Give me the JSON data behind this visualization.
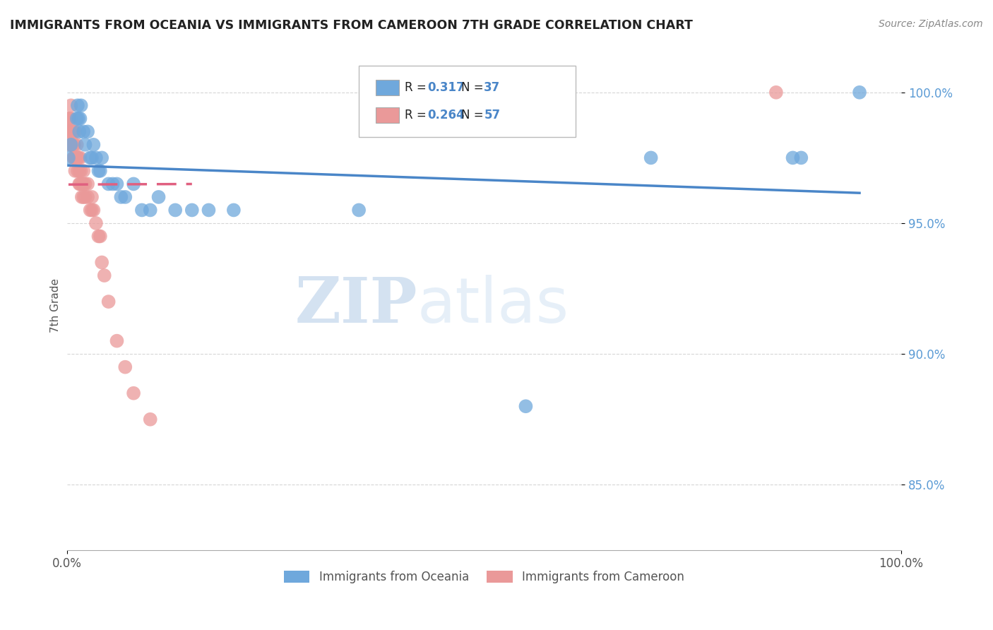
{
  "title": "IMMIGRANTS FROM OCEANIA VS IMMIGRANTS FROM CAMEROON 7TH GRADE CORRELATION CHART",
  "source": "Source: ZipAtlas.com",
  "ylabel": "7th Grade",
  "y_tick_vals": [
    0.85,
    0.9,
    0.95,
    1.0
  ],
  "legend_blue_r": "0.317",
  "legend_blue_n": "37",
  "legend_pink_r": "0.264",
  "legend_pink_n": "57",
  "blue_color": "#6fa8dc",
  "pink_color": "#ea9999",
  "blue_line_color": "#4a86c8",
  "pink_line_color": "#e06080",
  "watermark_zip": "ZIP",
  "watermark_atlas": "atlas",
  "blue_scatter_x": [
    0.002,
    0.005,
    0.012,
    0.013,
    0.014,
    0.015,
    0.016,
    0.017,
    0.02,
    0.022,
    0.025,
    0.028,
    0.03,
    0.032,
    0.035,
    0.038,
    0.04,
    0.042,
    0.05,
    0.055,
    0.06,
    0.065,
    0.07,
    0.08,
    0.09,
    0.1,
    0.11,
    0.13,
    0.15,
    0.17,
    0.2,
    0.35,
    0.55,
    0.7,
    0.87,
    0.88,
    0.95
  ],
  "blue_scatter_y": [
    0.975,
    0.98,
    0.99,
    0.995,
    0.99,
    0.985,
    0.99,
    0.995,
    0.985,
    0.98,
    0.985,
    0.975,
    0.975,
    0.98,
    0.975,
    0.97,
    0.97,
    0.975,
    0.965,
    0.965,
    0.965,
    0.96,
    0.96,
    0.965,
    0.955,
    0.955,
    0.96,
    0.955,
    0.955,
    0.955,
    0.955,
    0.955,
    0.88,
    0.975,
    0.975,
    0.975,
    1.0
  ],
  "pink_scatter_x": [
    0.002,
    0.002,
    0.003,
    0.003,
    0.003,
    0.004,
    0.005,
    0.005,
    0.005,
    0.005,
    0.006,
    0.006,
    0.007,
    0.007,
    0.008,
    0.008,
    0.008,
    0.009,
    0.009,
    0.01,
    0.01,
    0.01,
    0.011,
    0.012,
    0.012,
    0.013,
    0.013,
    0.014,
    0.015,
    0.015,
    0.016,
    0.016,
    0.017,
    0.018,
    0.018,
    0.02,
    0.02,
    0.02,
    0.022,
    0.022,
    0.025,
    0.025,
    0.028,
    0.03,
    0.03,
    0.032,
    0.035,
    0.038,
    0.04,
    0.042,
    0.045,
    0.05,
    0.06,
    0.07,
    0.08,
    0.1,
    0.85
  ],
  "pink_scatter_y": [
    0.99,
    0.985,
    0.99,
    0.985,
    0.98,
    0.985,
    0.995,
    0.99,
    0.985,
    0.98,
    0.985,
    0.98,
    0.985,
    0.98,
    0.985,
    0.98,
    0.975,
    0.98,
    0.975,
    0.985,
    0.975,
    0.97,
    0.975,
    0.98,
    0.975,
    0.975,
    0.97,
    0.975,
    0.97,
    0.965,
    0.975,
    0.965,
    0.97,
    0.965,
    0.96,
    0.97,
    0.965,
    0.96,
    0.965,
    0.96,
    0.965,
    0.96,
    0.955,
    0.96,
    0.955,
    0.955,
    0.95,
    0.945,
    0.945,
    0.935,
    0.93,
    0.92,
    0.905,
    0.895,
    0.885,
    0.875,
    1.0
  ],
  "blue_line_x0": 0.002,
  "blue_line_x1": 0.95,
  "pink_line_x0": 0.002,
  "pink_line_x1": 0.15,
  "xlim": [
    0.0,
    1.0
  ],
  "ylim": [
    0.825,
    1.012
  ]
}
